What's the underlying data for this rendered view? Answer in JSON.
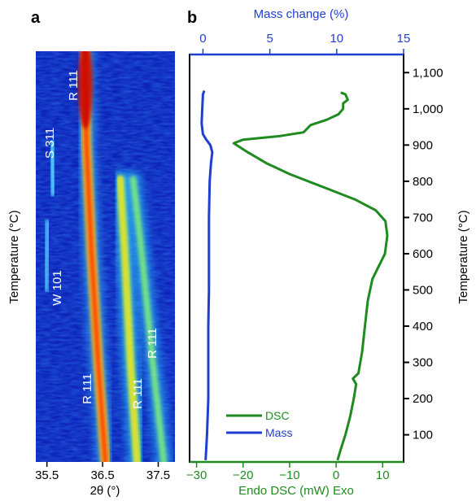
{
  "colors": {
    "dsc": "#1f8a1f",
    "mass": "#1f3fd0",
    "axis": "#000000",
    "top_axis": "#1f3fd0",
    "bottom_axis": "#1f8a1f",
    "heatmap_bg": "#0a1fb8"
  },
  "panel_a": {
    "letter": "a",
    "xlabel": "2θ (°)",
    "ylabel": "Temperature (°C)",
    "x_ticks": [
      "35.5",
      "36.5",
      "37.5"
    ],
    "labels": [
      "R 111",
      "S 311",
      "W 101",
      "R 111",
      "R 111",
      "R 111"
    ]
  },
  "panel_b": {
    "letter": "b",
    "top_axis_label": "Mass change (%)",
    "bottom_axis_label": "Endo DSC (mW) Exo",
    "right_axis_label": "Temperature (°C)",
    "legend": {
      "dsc": "DSC",
      "mass": "Mass"
    }
  },
  "chart_data": [
    {
      "type": "heatmap",
      "panel": "a",
      "xlabel": "2θ (°)",
      "ylabel": "Temperature (°C)",
      "xlim": [
        35.3,
        37.8
      ],
      "ylim": [
        25,
        1150
      ],
      "x_ticks": [
        35.5,
        36.5,
        37.5
      ],
      "peaks": [
        {
          "label": "R 111",
          "points": [
            [
              36.18,
              1150
            ],
            [
              36.21,
              900
            ],
            [
              36.3,
              600
            ],
            [
              36.42,
              300
            ],
            [
              36.55,
              25
            ]
          ]
        },
        {
          "label": "S 311",
          "points": [
            [
              35.58,
              900
            ],
            [
              35.62,
              760
            ]
          ]
        },
        {
          "label": "W 101",
          "points": [
            [
              35.52,
              680
            ],
            [
              35.48,
              500
            ]
          ]
        },
        {
          "label": "R 111",
          "points": [
            [
              36.82,
              800
            ],
            [
              36.9,
              600
            ],
            [
              37.0,
              300
            ],
            [
              37.12,
              25
            ]
          ]
        },
        {
          "label": "R 111",
          "points": [
            [
              37.05,
              800
            ],
            [
              37.2,
              600
            ],
            [
              37.4,
              300
            ],
            [
              37.6,
              25
            ]
          ]
        }
      ]
    },
    {
      "type": "line",
      "panel": "b",
      "x_bottom_label": "Endo DSC (mW) Exo",
      "x_top_label": "Mass change (%)",
      "ylabel": "Temperature (°C)",
      "x_bottom_lim": [
        -31.5,
        14.5
      ],
      "x_top_lim": [
        -1,
        15
      ],
      "ylim": [
        25,
        1150
      ],
      "x_bottom_ticks": [
        -30,
        -20,
        -10,
        0,
        10
      ],
      "x_top_ticks": [
        0,
        5,
        10,
        15
      ],
      "y_ticks": [
        100,
        200,
        300,
        400,
        500,
        600,
        700,
        800,
        900,
        1000,
        1100
      ],
      "y_tick_labels": [
        "100",
        "200",
        "300",
        "400",
        "500",
        "600",
        "700",
        "800",
        "900",
        "1,000",
        "1,100"
      ],
      "legend_position": "bottom-left",
      "series": [
        {
          "name": "DSC",
          "axis": "bottom",
          "points": [
            [
              0.3,
              30
            ],
            [
              1.0,
              60
            ],
            [
              2.0,
              100
            ],
            [
              3.0,
              150
            ],
            [
              3.8,
              200
            ],
            [
              4.3,
              240
            ],
            [
              3.6,
              255
            ],
            [
              4.8,
              270
            ],
            [
              5.6,
              330
            ],
            [
              6.2,
              400
            ],
            [
              6.8,
              470
            ],
            [
              7.8,
              530
            ],
            [
              10.5,
              600
            ],
            [
              11.0,
              650
            ],
            [
              10.6,
              690
            ],
            [
              8.5,
              720
            ],
            [
              4.0,
              750
            ],
            [
              -3.0,
              785
            ],
            [
              -10.0,
              820
            ],
            [
              -15.0,
              850
            ],
            [
              -19.0,
              880
            ],
            [
              -22.0,
              905
            ],
            [
              -20.0,
              915
            ],
            [
              -12.0,
              925
            ],
            [
              -7.0,
              935
            ],
            [
              -5.5,
              955
            ],
            [
              -2.0,
              970
            ],
            [
              0.5,
              985
            ],
            [
              1.5,
              1000
            ],
            [
              1.5,
              1015
            ],
            [
              2.5,
              1025
            ],
            [
              2.0,
              1040
            ],
            [
              1.0,
              1045
            ]
          ]
        },
        {
          "name": "Mass",
          "axis": "top",
          "points": [
            [
              0.2,
              30
            ],
            [
              0.3,
              100
            ],
            [
              0.4,
              200
            ],
            [
              0.4,
              300
            ],
            [
              0.4,
              400
            ],
            [
              0.45,
              500
            ],
            [
              0.45,
              600
            ],
            [
              0.45,
              700
            ],
            [
              0.5,
              800
            ],
            [
              0.6,
              850
            ],
            [
              0.7,
              880
            ],
            [
              0.55,
              900
            ],
            [
              0.25,
              915
            ],
            [
              0.0,
              930
            ],
            [
              -0.1,
              960
            ],
            [
              -0.05,
              1000
            ],
            [
              0.0,
              1040
            ],
            [
              0.1,
              1050
            ]
          ]
        }
      ]
    }
  ]
}
